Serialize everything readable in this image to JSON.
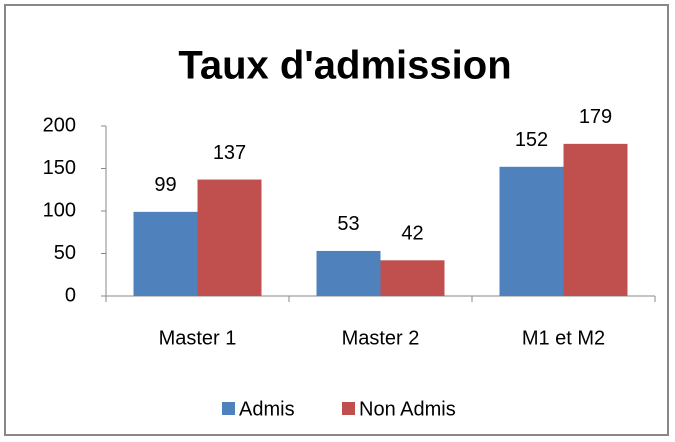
{
  "chart_data": {
    "type": "bar",
    "title": "Taux d'admission",
    "categories": [
      "Master 1",
      "Master 2",
      "M1 et M2"
    ],
    "series": [
      {
        "name": "Admis",
        "color": "#4f81bd",
        "values": [
          99,
          53,
          152
        ]
      },
      {
        "name": "Non Admis",
        "color": "#c0504d",
        "values": [
          137,
          42,
          179
        ]
      }
    ],
    "ylim": [
      0,
      200
    ],
    "yticks": [
      0,
      50,
      100,
      150,
      200
    ],
    "grid": false,
    "legend": "bottom"
  }
}
